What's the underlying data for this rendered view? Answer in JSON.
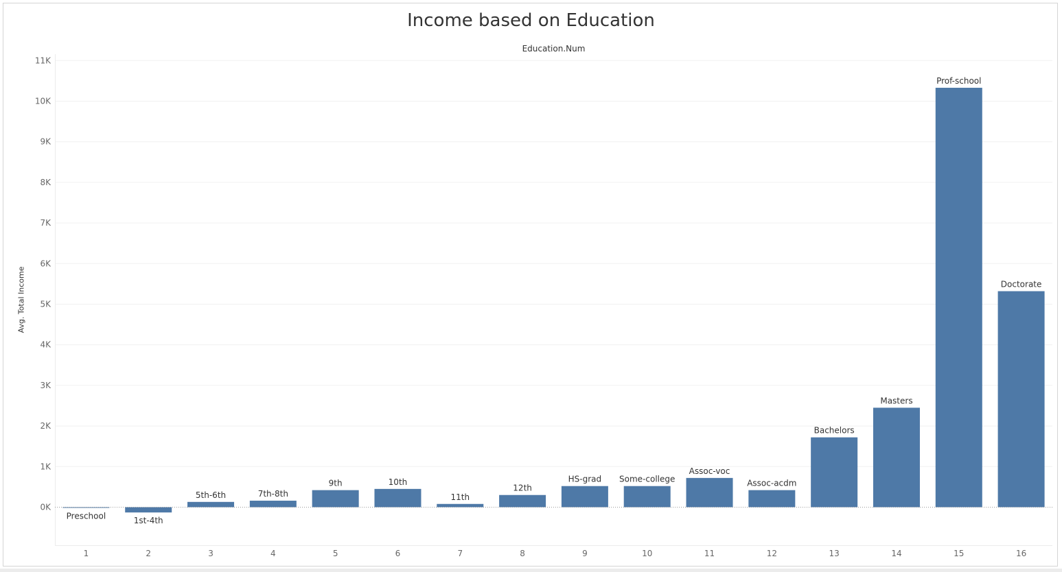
{
  "colors": {
    "bar": "#4e79a7",
    "grid": "#f0f0f0",
    "axis_text": "#666666",
    "label_text": "#333333",
    "zero_line": "#9a9a9a"
  },
  "chart_data": {
    "type": "bar",
    "title": "Income based on Education",
    "x_header": "Education.Num",
    "xlabel": "",
    "ylabel": "Avg. Total Income",
    "categories": [
      "1",
      "2",
      "3",
      "4",
      "5",
      "6",
      "7",
      "8",
      "9",
      "10",
      "11",
      "12",
      "13",
      "14",
      "15",
      "16"
    ],
    "bar_labels": [
      "Preschool",
      "1st-4th",
      "5th-6th",
      "7th-8th",
      "9th",
      "10th",
      "11th",
      "12th",
      "HS-grad",
      "Some-college",
      "Assoc-voc",
      "Assoc-acdm",
      "Bachelors",
      "Masters",
      "Prof-school",
      "Doctorate"
    ],
    "values": [
      -15,
      -130,
      130,
      160,
      420,
      450,
      80,
      300,
      520,
      520,
      720,
      420,
      1720,
      2450,
      10330,
      5320
    ],
    "ylim": [
      -1000,
      11000
    ],
    "y_ticks": [
      0,
      1000,
      2000,
      3000,
      4000,
      5000,
      6000,
      7000,
      8000,
      9000,
      10000,
      11000
    ],
    "y_tick_labels": [
      "0K",
      "1K",
      "2K",
      "3K",
      "4K",
      "5K",
      "6K",
      "7K",
      "8K",
      "9K",
      "10K",
      "11K"
    ],
    "grid": true,
    "legend": "none"
  }
}
